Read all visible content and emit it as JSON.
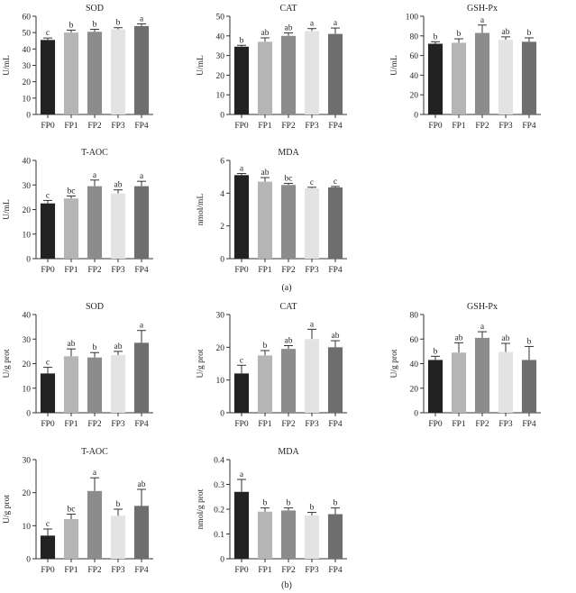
{
  "figure": {
    "panel_labels": [
      "(a)",
      "(b)"
    ]
  },
  "colors": {
    "FP0": "#222222",
    "FP1": "#b5b5b5",
    "FP2": "#8c8c8c",
    "FP3": "#e3e3e3",
    "FP4": "#6e6e6e",
    "axis": "#333333"
  },
  "chart_data": [
    {
      "id": "a-sod",
      "panel": "(a)",
      "type": "bar",
      "title": "SOD",
      "ylabel": "U/mL",
      "categories": [
        "FP0",
        "FP1",
        "FP2",
        "FP3",
        "FP4"
      ],
      "values": [
        45.5,
        50,
        50.5,
        52,
        54
      ],
      "errors": [
        1.2,
        1.5,
        1.5,
        1,
        1.3
      ],
      "letters": [
        "c",
        "b",
        "b",
        "b",
        "a"
      ],
      "ylim": [
        0,
        60
      ],
      "yticks": [
        0,
        10,
        20,
        30,
        40,
        50,
        60
      ]
    },
    {
      "id": "a-cat",
      "panel": "(a)",
      "type": "bar",
      "title": "CAT",
      "ylabel": "U/mL",
      "categories": [
        "FP0",
        "FP1",
        "FP2",
        "FP3",
        "FP4"
      ],
      "values": [
        34.5,
        37,
        40,
        42.5,
        41
      ],
      "errors": [
        0.7,
        2,
        1.5,
        1.2,
        3
      ],
      "letters": [
        "b",
        "ab",
        "ab",
        "a",
        "a"
      ],
      "ylim": [
        0,
        50
      ],
      "yticks": [
        0,
        10,
        20,
        30,
        40,
        50
      ]
    },
    {
      "id": "a-gshpx",
      "panel": "(a)",
      "type": "bar",
      "title": "GSH-Px",
      "ylabel": "U/mL",
      "categories": [
        "FP0",
        "FP1",
        "FP2",
        "FP3",
        "FP4"
      ],
      "values": [
        72,
        73,
        83,
        76,
        74
      ],
      "errors": [
        2,
        4,
        8,
        3,
        4
      ],
      "letters": [
        "b",
        "b",
        "a",
        "ab",
        "b"
      ],
      "ylim": [
        0,
        100
      ],
      "yticks": [
        0,
        20,
        40,
        60,
        80,
        100
      ]
    },
    {
      "id": "a-taoc",
      "panel": "(a)",
      "type": "bar",
      "title": "T-AOC",
      "ylabel": "U/mL",
      "categories": [
        "FP0",
        "FP1",
        "FP2",
        "FP3",
        "FP4"
      ],
      "values": [
        22.5,
        24.5,
        29.5,
        26.5,
        29.5
      ],
      "errors": [
        1.2,
        1,
        2.5,
        1.5,
        2
      ],
      "letters": [
        "c",
        "bc",
        "a",
        "ab",
        "a"
      ],
      "ylim": [
        0,
        40
      ],
      "yticks": [
        0,
        10,
        20,
        30,
        40
      ]
    },
    {
      "id": "a-mda",
      "panel": "(a)",
      "type": "bar",
      "title": "MDA",
      "ylabel": "nmol/mL",
      "categories": [
        "FP0",
        "FP1",
        "FP2",
        "FP3",
        "FP4"
      ],
      "values": [
        5.1,
        4.7,
        4.5,
        4.3,
        4.35
      ],
      "errors": [
        0.1,
        0.25,
        0.1,
        0.06,
        0.06
      ],
      "letters": [
        "a",
        "ab",
        "bc",
        "c",
        "c"
      ],
      "ylim": [
        0,
        6
      ],
      "yticks": [
        0,
        2,
        4,
        6
      ]
    },
    {
      "id": "b-sod",
      "panel": "(b)",
      "type": "bar",
      "title": "SOD",
      "ylabel": "U/g prot",
      "categories": [
        "FP0",
        "FP1",
        "FP2",
        "FP3",
        "FP4"
      ],
      "values": [
        16,
        23,
        22.5,
        23.5,
        28.5
      ],
      "errors": [
        2.5,
        3,
        2,
        1.5,
        5
      ],
      "letters": [
        "c",
        "ab",
        "b",
        "ab",
        "a"
      ],
      "ylim": [
        0,
        40
      ],
      "yticks": [
        0,
        10,
        20,
        30,
        40
      ]
    },
    {
      "id": "b-cat",
      "panel": "(b)",
      "type": "bar",
      "title": "CAT",
      "ylabel": "U/g prot",
      "categories": [
        "FP0",
        "FP1",
        "FP2",
        "FP3",
        "FP4"
      ],
      "values": [
        12,
        17.5,
        19.5,
        22.5,
        20
      ],
      "errors": [
        2.5,
        1.5,
        1,
        3,
        2
      ],
      "letters": [
        "c",
        "b",
        "ab",
        "a",
        "ab"
      ],
      "ylim": [
        0,
        30
      ],
      "yticks": [
        0,
        10,
        20,
        30
      ]
    },
    {
      "id": "b-gshpx",
      "panel": "(b)",
      "type": "bar",
      "title": "GSH-Px",
      "ylabel": "U/g prot",
      "categories": [
        "FP0",
        "FP1",
        "FP2",
        "FP3",
        "FP4"
      ],
      "values": [
        43,
        49,
        61,
        49.5,
        43
      ],
      "errors": [
        3,
        8,
        5,
        7,
        11
      ],
      "letters": [
        "b",
        "ab",
        "a",
        "ab",
        "b"
      ],
      "ylim": [
        0,
        80
      ],
      "yticks": [
        0,
        20,
        40,
        60,
        80
      ]
    },
    {
      "id": "b-taoc",
      "panel": "(b)",
      "type": "bar",
      "title": "T-AOC",
      "ylabel": "U/g prot",
      "categories": [
        "FP0",
        "FP1",
        "FP2",
        "FP3",
        "FP4"
      ],
      "values": [
        7,
        12,
        20.5,
        13,
        16
      ],
      "errors": [
        2,
        1.5,
        4,
        2,
        5
      ],
      "letters": [
        "c",
        "bc",
        "a",
        "b",
        "ab"
      ],
      "ylim": [
        0,
        30
      ],
      "yticks": [
        0,
        10,
        20,
        30
      ]
    },
    {
      "id": "b-mda",
      "panel": "(b)",
      "type": "bar",
      "title": "MDA",
      "ylabel": "nmol/g prot",
      "categories": [
        "FP0",
        "FP1",
        "FP2",
        "FP3",
        "FP4"
      ],
      "values": [
        0.27,
        0.19,
        0.195,
        0.175,
        0.18
      ],
      "errors": [
        0.05,
        0.015,
        0.01,
        0.012,
        0.025
      ],
      "letters": [
        "a",
        "b",
        "b",
        "b",
        "b"
      ],
      "ylim": [
        0,
        0.4
      ],
      "yticks": [
        0,
        0.1,
        0.2,
        0.3,
        0.4
      ]
    }
  ]
}
